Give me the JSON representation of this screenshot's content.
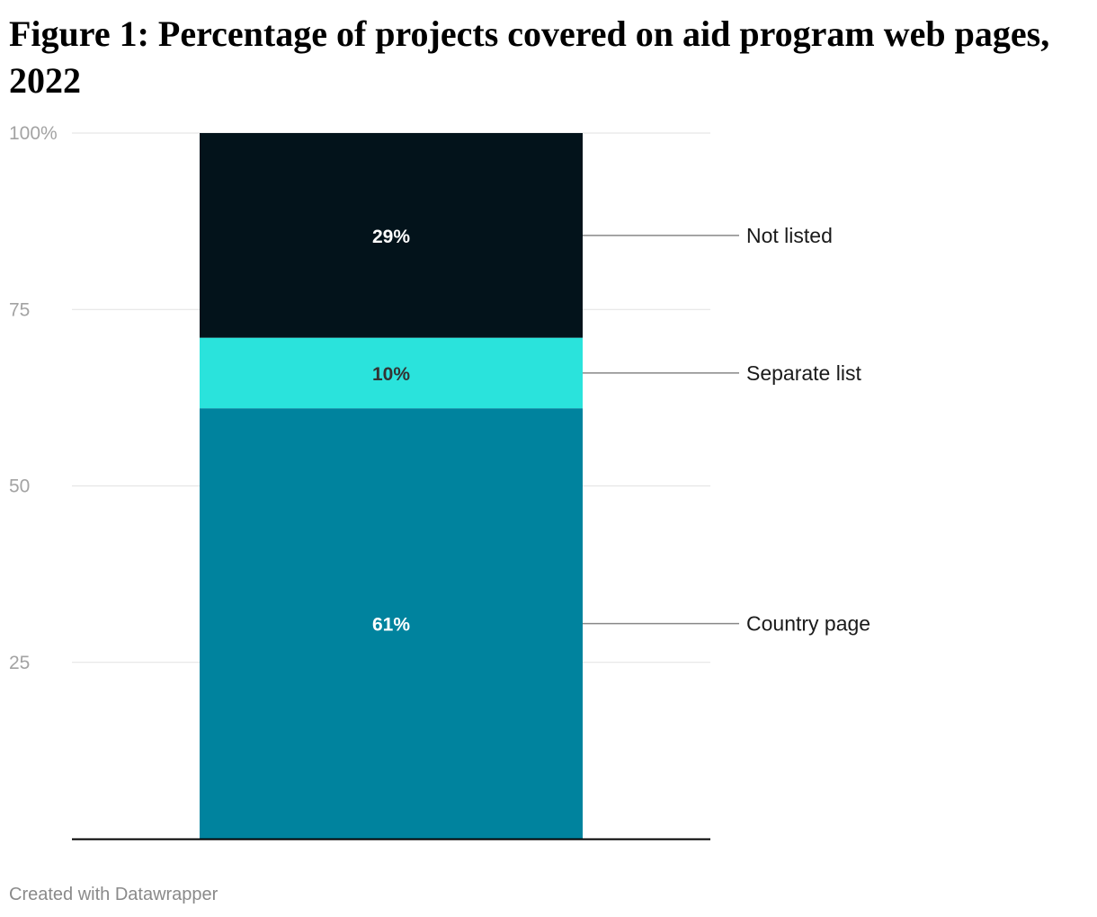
{
  "title": "Figure 1: Percentage of projects covered on aid program web pages, 2022",
  "footer": "Created with Datawrapper",
  "chart_data": {
    "type": "bar",
    "stacked": true,
    "categories": [
      ""
    ],
    "series": [
      {
        "name": "Country page",
        "values": [
          61
        ],
        "label": "61%",
        "color": "#00839e",
        "label_color": "#ffffff"
      },
      {
        "name": "Separate list",
        "values": [
          10
        ],
        "label": "10%",
        "color": "#2ae3dc",
        "label_color": "#333333"
      },
      {
        "name": "Not listed",
        "values": [
          29
        ],
        "label": "29%",
        "color": "#03131b",
        "label_color": "#ffffff"
      }
    ],
    "ylim": [
      0,
      100
    ],
    "yticks": [
      {
        "value": 25,
        "label": "25"
      },
      {
        "value": 50,
        "label": "50"
      },
      {
        "value": 75,
        "label": "75"
      },
      {
        "value": 100,
        "label": "100%"
      }
    ],
    "grid": true,
    "legend": "right, direct labels"
  }
}
